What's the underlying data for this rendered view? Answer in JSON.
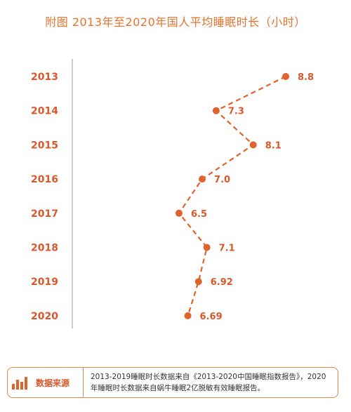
{
  "title": "附图 2013年至2020年国人平均睡眠时长（小时）",
  "source": {
    "label": "数据来源",
    "text": "2013-2019睡眠时长数据来自《2013-2020中国睡眠指数报告》，2020年睡眠时长数据来自蜗牛睡眠2亿脱敏有效睡眠报告。",
    "icon": "bar-chart-icon"
  },
  "colors": {
    "accent": "#e0622c",
    "axis": "#999999"
  },
  "chart_data": {
    "type": "line",
    "orientation": "horizontal",
    "categories": [
      "2013",
      "2014",
      "2015",
      "2016",
      "2017",
      "2018",
      "2019",
      "2020"
    ],
    "values": [
      8.8,
      7.3,
      8.1,
      7.0,
      6.5,
      7.1,
      6.92,
      6.69
    ],
    "value_labels": [
      "8.8",
      "7.3",
      "8.1",
      "7.0",
      "6.5",
      "7.1",
      "6.92",
      "6.69"
    ],
    "xlim": [
      4.2,
      8.8
    ],
    "line_style": "dashed",
    "marker": "circle",
    "grid": false
  }
}
